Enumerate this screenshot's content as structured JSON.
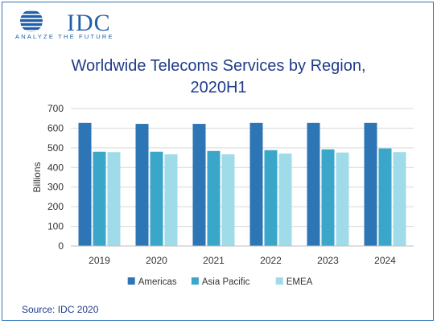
{
  "logo": {
    "name": "IDC",
    "tagline": "ANALYZE THE FUTURE",
    "color": "#1f5fa8"
  },
  "source": "Source: IDC 2020",
  "chart_data": {
    "type": "bar",
    "title_line1": "Worldwide Telecoms Services by Region,",
    "title_line2": "2020H1",
    "ylabel": "Billions",
    "xlabel": "",
    "ylim": [
      0,
      700
    ],
    "yticks": [
      0,
      100,
      200,
      300,
      400,
      500,
      600,
      700
    ],
    "categories": [
      "2019",
      "2020",
      "2021",
      "2022",
      "2023",
      "2024"
    ],
    "grid": true,
    "legend_position": "bottom",
    "series": [
      {
        "name": "Americas",
        "color": "#2e75b6",
        "values": [
          627,
          622,
          622,
          627,
          627,
          627
        ]
      },
      {
        "name": "Asia Pacific",
        "color": "#3aa6c9",
        "values": [
          480,
          480,
          484,
          488,
          492,
          497
        ]
      },
      {
        "name": "EMEA",
        "color": "#9fdbe8",
        "values": [
          478,
          467,
          467,
          471,
          476,
          478
        ]
      }
    ]
  }
}
